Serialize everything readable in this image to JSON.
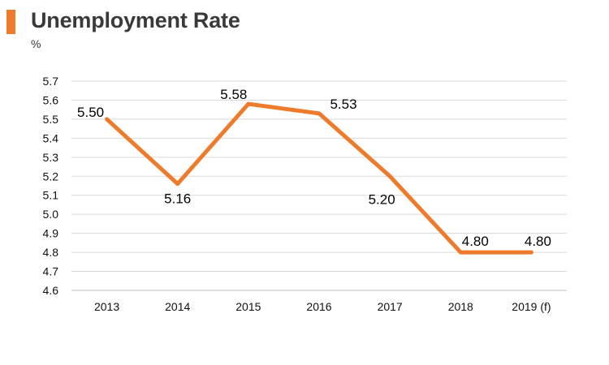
{
  "header": {
    "title": "Unemployment Rate",
    "unit": "%"
  },
  "colors": {
    "accent": "#ee7b2b",
    "line": "#ee7b2b",
    "grid": "#d9d9d9",
    "axis": "#bfbfbf"
  },
  "chart_data": {
    "type": "line",
    "title": "Unemployment Rate",
    "ylabel": "%",
    "xlabel": "",
    "categories": [
      "2013",
      "2014",
      "2015",
      "2016",
      "2017",
      "2018",
      "2019 (f)"
    ],
    "series": [
      {
        "values": [
          5.5,
          5.16,
          5.58,
          5.53,
          5.2,
          4.8,
          4.8
        ]
      }
    ],
    "data_labels": [
      "5.50",
      "5.16",
      "5.58",
      "5.53",
      "5.20",
      "4.80",
      "4.80"
    ],
    "ylim": [
      4.6,
      5.7
    ],
    "yticks": [
      "4.6",
      "4.7",
      "4.8",
      "4.9",
      "5.0",
      "5.1",
      "5.2",
      "5.3",
      "5.4",
      "5.5",
      "5.6",
      "5.7"
    ],
    "grid": true,
    "legend": "none"
  }
}
